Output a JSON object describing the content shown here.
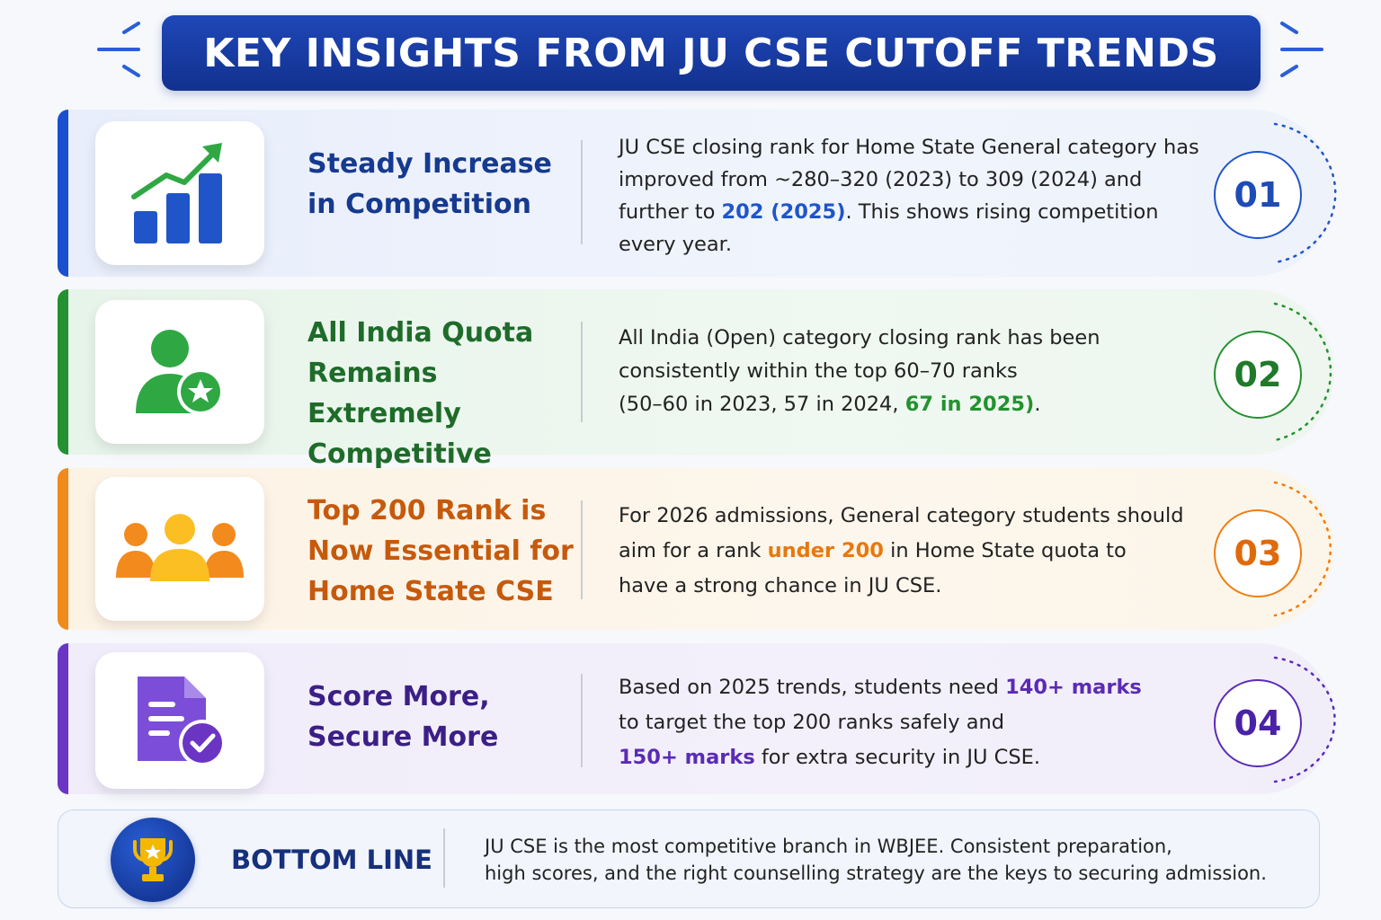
{
  "header": {
    "title": "KEY INSIGHTS FROM JU CSE CUTOFF TRENDS"
  },
  "colors": {
    "header_bg": "#1a3fa8",
    "blue": "#1f55c8",
    "green": "#23912f",
    "orange": "#ef7d10",
    "purple": "#5a2cb8"
  },
  "insights": [
    {
      "number": "01",
      "icon": "bar-chart-trend-up-icon",
      "title_lines": [
        "Steady Increase",
        "in Competition"
      ],
      "desc": {
        "pre": "JU CSE closing rank for Home State General category has improved from ~280–320 (2023) to 309 (2024) and further to ",
        "hl": "202 (2025)",
        "post": ". This shows rising competition every year."
      }
    },
    {
      "number": "02",
      "icon": "user-star-icon",
      "title_lines": [
        "All India Quota",
        "Remains Extremely",
        "Competitive"
      ],
      "desc": {
        "line1": "All India (Open) category closing rank has been",
        "line2": "consistently within the top 60–70 ranks",
        "line3_pre": "(50–60 in 2023, 57 in 2024, ",
        "hl": "67 in 2025)",
        "post": "."
      }
    },
    {
      "number": "03",
      "icon": "group-users-icon",
      "title_lines": [
        "Top 200 Rank is",
        "Now Essential for",
        "Home State CSE"
      ],
      "desc": {
        "line1": "For 2026 admissions, General category students should",
        "line2_pre": "aim for a rank ",
        "hl": "under 200",
        "line2_post": " in Home State quota to",
        "line3": "have a strong chance in JU CSE."
      }
    },
    {
      "number": "04",
      "icon": "document-check-icon",
      "title_lines": [
        "Score More,",
        "Secure More"
      ],
      "desc": {
        "line1_pre": "Based on 2025 trends, students need ",
        "hl1": "140+ marks",
        "line2": "to target the top 200 ranks safely and",
        "hl2": "150+ marks",
        "line3_post": " for extra security in JU CSE."
      }
    }
  ],
  "bottom": {
    "icon": "trophy-icon",
    "label": "BOTTOM LINE",
    "line1": "JU CSE is the most competitive branch in WBJEE. Consistent preparation,",
    "line2": "high scores, and the right counselling strategy are the keys to securing admission."
  }
}
